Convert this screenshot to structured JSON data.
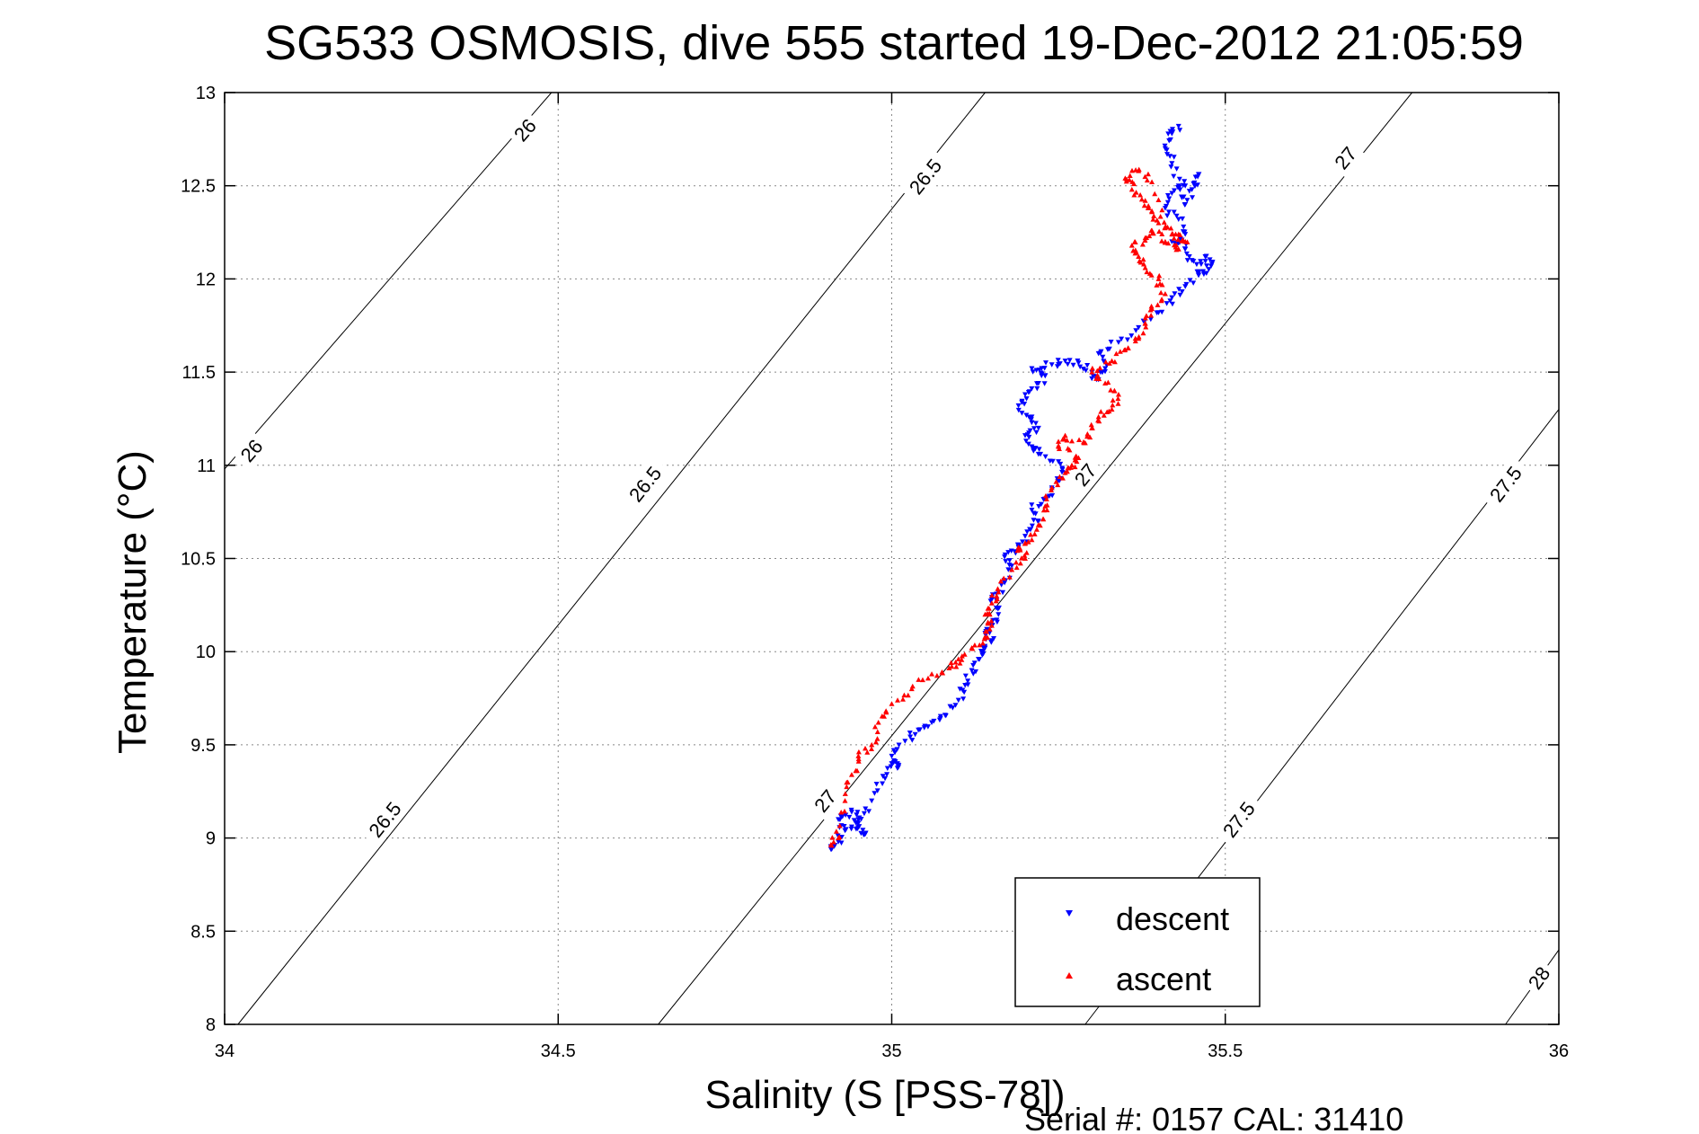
{
  "chart_data": {
    "type": "scatter",
    "title": "SG533 OSMOSIS, dive 555 started 19-Dec-2012 21:05:59",
    "xlabel": "Salinity (S [PSS-78])",
    "ylabel": "Temperature (°C)",
    "xlim": [
      34,
      36
    ],
    "ylim": [
      8,
      13
    ],
    "xticks": [
      34,
      34.5,
      35,
      35.5,
      36
    ],
    "xtick_labels": [
      "34",
      "34.5",
      "35",
      "35.5",
      "36"
    ],
    "yticks": [
      8,
      8.5,
      9,
      9.5,
      10,
      10.5,
      11,
      11.5,
      12,
      12.5,
      13
    ],
    "ytick_labels": [
      "8",
      "8.5",
      "9",
      "9.5",
      "10",
      "10.5",
      "11",
      "11.5",
      "12",
      "12.5",
      "13"
    ],
    "grid": true,
    "legend_position": "bottom-right",
    "footer": "Serial #: 0157  CAL: 31410",
    "contours": [
      {
        "label": "26",
        "points": [
          [
            34.0,
            10.98
          ],
          [
            34.49,
            13.0
          ]
        ],
        "label_positions": [
          [
            34.04,
            11.08
          ],
          [
            34.45,
            12.8
          ]
        ]
      },
      {
        "label": "26.5",
        "points": [
          [
            34.02,
            8.0
          ],
          [
            35.14,
            13.0
          ]
        ],
        "label_positions": [
          [
            34.24,
            9.1
          ],
          [
            34.63,
            10.9
          ],
          [
            35.05,
            12.55
          ]
        ]
      },
      {
        "label": "27",
        "points": [
          [
            34.65,
            8.0
          ],
          [
            35.78,
            13.0
          ]
        ],
        "label_positions": [
          [
            34.9,
            9.2
          ],
          [
            35.29,
            10.95
          ],
          [
            35.68,
            12.65
          ]
        ]
      },
      {
        "label": "27.5",
        "points": [
          [
            35.29,
            8.0
          ],
          [
            36.0,
            11.3
          ]
        ],
        "label_positions": [
          [
            35.52,
            9.1
          ],
          [
            35.92,
            10.9
          ]
        ]
      },
      {
        "label": "28",
        "points": [
          [
            35.92,
            8.0
          ],
          [
            36.0,
            8.4
          ]
        ],
        "label_positions": [
          [
            35.97,
            8.25
          ]
        ]
      }
    ],
    "series": [
      {
        "name": "descent",
        "color": "#0000ff",
        "marker": "triangle-down",
        "x": [
          34.91,
          34.92,
          34.93,
          34.92,
          34.94,
          34.95,
          34.94,
          34.96,
          34.95,
          34.97,
          34.99,
          35.0,
          35.01,
          35.0,
          35.02,
          35.04,
          35.06,
          35.08,
          35.1,
          35.11,
          35.12,
          35.13,
          35.14,
          35.15,
          35.14,
          35.15,
          35.16,
          35.15,
          35.16,
          35.17,
          35.18,
          35.17,
          35.19,
          35.2,
          35.22,
          35.21,
          35.23,
          35.24,
          35.26,
          35.25,
          35.22,
          35.21,
          35.2,
          35.22,
          35.21,
          35.19,
          35.2,
          35.22,
          35.23,
          35.21,
          35.24,
          35.26,
          35.28,
          35.3,
          35.31,
          35.32,
          35.31,
          35.34,
          35.37,
          35.4,
          35.42,
          35.44,
          35.46,
          35.47,
          35.48,
          35.46,
          35.45,
          35.44,
          35.42,
          35.44,
          35.43,
          35.41,
          35.42,
          35.44,
          35.46,
          35.45,
          35.44,
          35.43,
          35.42,
          35.41,
          35.42,
          35.43
        ],
        "y": [
          8.94,
          8.98,
          9.04,
          9.1,
          9.14,
          9.1,
          9.06,
          9.02,
          9.08,
          9.2,
          9.32,
          9.4,
          9.38,
          9.44,
          9.52,
          9.58,
          9.62,
          9.66,
          9.74,
          9.82,
          9.9,
          9.96,
          10.02,
          10.06,
          10.1,
          10.14,
          10.2,
          10.28,
          10.32,
          10.38,
          10.46,
          10.52,
          10.56,
          10.62,
          10.7,
          10.76,
          10.82,
          10.88,
          10.96,
          11.02,
          11.06,
          11.1,
          11.16,
          11.2,
          11.26,
          11.32,
          11.38,
          11.44,
          11.48,
          11.52,
          11.54,
          11.56,
          11.55,
          11.5,
          11.46,
          11.52,
          11.6,
          11.66,
          11.74,
          11.82,
          11.9,
          11.96,
          12.04,
          12.12,
          12.08,
          12.02,
          12.1,
          12.16,
          12.2,
          12.24,
          12.32,
          12.38,
          12.46,
          12.5,
          12.56,
          12.48,
          12.4,
          12.5,
          12.62,
          12.7,
          12.78,
          12.82
        ]
      },
      {
        "name": "ascent",
        "color": "#ff0000",
        "marker": "triangle-up",
        "x": [
          34.91,
          34.92,
          34.93,
          34.94,
          34.95,
          34.97,
          34.98,
          35.0,
          35.03,
          35.06,
          35.09,
          35.1,
          35.12,
          35.14,
          35.15,
          35.14,
          35.15,
          35.16,
          35.18,
          35.2,
          35.19,
          35.21,
          35.22,
          35.23,
          35.24,
          35.26,
          35.27,
          35.28,
          35.25,
          35.26,
          35.29,
          35.3,
          35.31,
          35.33,
          35.34,
          35.32,
          35.3,
          35.33,
          35.35,
          35.37,
          35.38,
          35.39,
          35.41,
          35.4,
          35.38,
          35.37,
          35.36,
          35.38,
          35.39,
          35.41,
          35.43,
          35.42,
          35.4,
          35.39,
          35.38,
          35.36,
          35.35,
          35.37,
          35.39,
          35.41,
          35.43,
          35.44
        ],
        "y": [
          8.96,
          9.0,
          9.2,
          9.34,
          9.44,
          9.5,
          9.62,
          9.72,
          9.8,
          9.88,
          9.92,
          9.96,
          10.02,
          10.08,
          10.14,
          10.2,
          10.26,
          10.32,
          10.44,
          10.5,
          10.56,
          10.6,
          10.68,
          10.78,
          10.88,
          10.96,
          11.0,
          11.04,
          11.1,
          11.16,
          11.12,
          11.2,
          11.26,
          11.3,
          11.38,
          11.44,
          11.5,
          11.56,
          11.62,
          11.68,
          11.76,
          11.84,
          11.92,
          12.0,
          12.06,
          12.12,
          12.18,
          12.22,
          12.26,
          12.2,
          12.16,
          12.24,
          12.3,
          12.36,
          12.42,
          12.48,
          12.54,
          12.58,
          12.52,
          12.28,
          12.24,
          12.2
        ]
      }
    ]
  }
}
